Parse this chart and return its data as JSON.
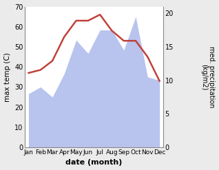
{
  "months": [
    "Jan",
    "Feb",
    "Mar",
    "Apr",
    "May",
    "Jun",
    "Jul",
    "Aug",
    "Sep",
    "Oct",
    "Nov",
    "Dec"
  ],
  "temp": [
    37,
    38.5,
    43,
    55,
    63,
    63,
    66,
    58,
    53,
    53,
    45,
    33
  ],
  "precip_kg": [
    8,
    9,
    7.5,
    11,
    16,
    14,
    17.5,
    17.5,
    14.5,
    19.5,
    10.5,
    10
  ],
  "temp_color": "#c0413a",
  "precip_color": "#b8c4ee",
  "ylabel_left": "max temp (C)",
  "ylabel_right": "med. precipitation\n(kg/m2)",
  "xlabel": "date (month)",
  "ylim_left": [
    0,
    70
  ],
  "ylim_right": [
    0,
    21
  ],
  "yticks_left": [
    0,
    10,
    20,
    30,
    40,
    50,
    60,
    70
  ],
  "yticks_right": [
    0,
    5,
    10,
    15,
    20
  ],
  "background_color": "#ebebeb",
  "plot_bg_color": "#ffffff",
  "temp_linewidth": 1.8
}
